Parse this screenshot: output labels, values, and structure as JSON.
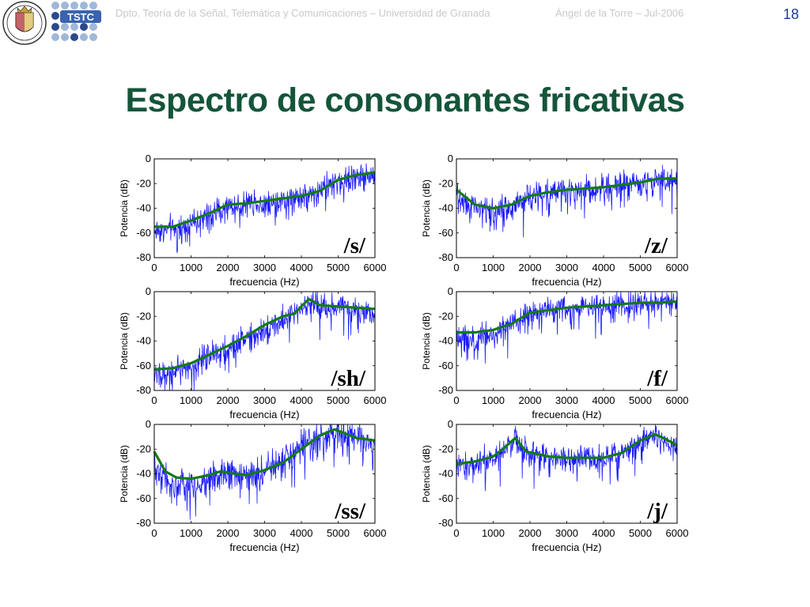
{
  "header": {
    "department": "Dpto. Teoría de la Señal, Telemática y Comunicaciones – Universidad de Granada",
    "author": "Ángel de la Torre – Jul-2006",
    "page_number": "18",
    "logo_ugr": "university-of-granada-crest",
    "logo_tstc": "TSTC"
  },
  "slide": {
    "title": "Espectro de consonantes fricativas"
  },
  "colors": {
    "noise_line": "#1a1aff",
    "envelope_line": "#147a14",
    "title": "#14553a",
    "page_number": "#1f3a93",
    "header_text": "#c9c9c9"
  },
  "chart_data": [
    {
      "type": "line",
      "label": "/s/",
      "xlabel": "frecuencia (Hz)",
      "ylabel": "Potencia (dB)",
      "xlim": [
        0,
        6000
      ],
      "ylim": [
        -80,
        0
      ],
      "xticks": [
        0,
        1000,
        2000,
        3000,
        4000,
        5000,
        6000
      ],
      "yticks": [
        0,
        -20,
        -40,
        -60,
        -80
      ],
      "grid": false,
      "series": [
        {
          "role": "spectrum",
          "color": "#1a1aff",
          "noise_db": 9,
          "x": [
            0,
            500,
            1000,
            1500,
            2000,
            2500,
            3000,
            3500,
            4000,
            4500,
            5000,
            5500,
            6000
          ],
          "y": [
            -58,
            -57,
            -52,
            -46,
            -39,
            -36,
            -35,
            -33,
            -30,
            -25,
            -18,
            -14,
            -13
          ]
        },
        {
          "role": "envelope",
          "color": "#147a14",
          "x": [
            0,
            500,
            1000,
            1500,
            2000,
            2500,
            3000,
            3500,
            4000,
            4500,
            5000,
            5500,
            6000
          ],
          "y": [
            -55,
            -55,
            -50,
            -44,
            -37,
            -36,
            -34,
            -32,
            -30,
            -26,
            -17,
            -13,
            -11
          ]
        }
      ]
    },
    {
      "type": "line",
      "label": "/z/",
      "xlabel": "frecuencia (Hz)",
      "ylabel": "Potencia (dB)",
      "xlim": [
        0,
        6000
      ],
      "ylim": [
        -80,
        0
      ],
      "xticks": [
        0,
        1000,
        2000,
        3000,
        4000,
        5000,
        6000
      ],
      "yticks": [
        0,
        -20,
        -40,
        -60,
        -80
      ],
      "grid": false,
      "series": [
        {
          "role": "spectrum",
          "color": "#1a1aff",
          "noise_db": 9,
          "x": [
            0,
            500,
            1000,
            1500,
            2000,
            2500,
            3000,
            3500,
            4000,
            4500,
            5000,
            5500,
            6000
          ],
          "y": [
            -30,
            -40,
            -42,
            -38,
            -30,
            -27,
            -25,
            -24,
            -23,
            -20,
            -18,
            -17,
            -17
          ]
        },
        {
          "role": "envelope",
          "color": "#147a14",
          "x": [
            0,
            500,
            1000,
            1500,
            2000,
            2500,
            3000,
            3500,
            4000,
            4500,
            5000,
            5500,
            6000
          ],
          "y": [
            -25,
            -37,
            -40,
            -37,
            -30,
            -27,
            -25,
            -24,
            -23,
            -21,
            -19,
            -16,
            -16
          ]
        }
      ]
    },
    {
      "type": "line",
      "label": "/sh/",
      "xlabel": "frecuencia (Hz)",
      "ylabel": "Potencia (dB)",
      "xlim": [
        0,
        6000
      ],
      "ylim": [
        -80,
        0
      ],
      "xticks": [
        0,
        1000,
        2000,
        3000,
        4000,
        5000,
        6000
      ],
      "yticks": [
        0,
        -20,
        -40,
        -60,
        -80
      ],
      "grid": false,
      "series": [
        {
          "role": "spectrum",
          "color": "#1a1aff",
          "noise_db": 9,
          "x": [
            0,
            500,
            1000,
            1500,
            2000,
            2500,
            3000,
            3500,
            3800,
            4200,
            4500,
            5000,
            5500,
            6000
          ],
          "y": [
            -66,
            -65,
            -60,
            -52,
            -45,
            -37,
            -30,
            -22,
            -18,
            -8,
            -12,
            -12,
            -14,
            -16
          ]
        },
        {
          "role": "envelope",
          "color": "#147a14",
          "x": [
            0,
            500,
            1000,
            1500,
            2000,
            2500,
            3000,
            3500,
            3800,
            4200,
            4500,
            5000,
            5500,
            6000
          ],
          "y": [
            -63,
            -62,
            -58,
            -51,
            -44,
            -36,
            -27,
            -20,
            -18,
            -6,
            -11,
            -12,
            -13,
            -14
          ]
        }
      ]
    },
    {
      "type": "line",
      "label": "/f/",
      "xlabel": "frecuencia (Hz)",
      "ylabel": "Potencia (dB)",
      "xlim": [
        0,
        6000
      ],
      "ylim": [
        -80,
        0
      ],
      "xticks": [
        0,
        1000,
        2000,
        3000,
        4000,
        5000,
        6000
      ],
      "yticks": [
        0,
        -20,
        -40,
        -60,
        -80
      ],
      "grid": false,
      "series": [
        {
          "role": "spectrum",
          "color": "#1a1aff",
          "noise_db": 9,
          "x": [
            0,
            500,
            1000,
            1500,
            2000,
            2500,
            3000,
            3500,
            4000,
            4500,
            5000,
            5500,
            6000
          ],
          "y": [
            -36,
            -37,
            -34,
            -25,
            -16,
            -15,
            -13,
            -12,
            -11,
            -10,
            -10,
            -9,
            -9
          ]
        },
        {
          "role": "envelope",
          "color": "#147a14",
          "x": [
            0,
            500,
            1000,
            1500,
            2000,
            2500,
            3000,
            3500,
            4000,
            4500,
            5000,
            5500,
            6000
          ],
          "y": [
            -33,
            -33,
            -31,
            -26,
            -17,
            -15,
            -13,
            -12,
            -11,
            -10,
            -9,
            -9,
            -8
          ]
        }
      ]
    },
    {
      "type": "line",
      "label": "/ss/",
      "xlabel": "frecuencia (Hz)",
      "ylabel": "Potencia (dB)",
      "xlim": [
        0,
        6000
      ],
      "ylim": [
        -80,
        0
      ],
      "xticks": [
        0,
        1000,
        2000,
        3000,
        4000,
        5000,
        6000
      ],
      "yticks": [
        0,
        -20,
        -40,
        -60,
        -80
      ],
      "grid": false,
      "series": [
        {
          "role": "spectrum",
          "color": "#1a1aff",
          "noise_db": 11,
          "x": [
            0,
            500,
            1000,
            1500,
            1800,
            2200,
            2500,
            3000,
            3500,
            4000,
            4500,
            4900,
            5500,
            6000
          ],
          "y": [
            -32,
            -50,
            -50,
            -44,
            -40,
            -42,
            -42,
            -38,
            -30,
            -20,
            -10,
            -4,
            -10,
            -14
          ]
        },
        {
          "role": "envelope",
          "color": "#147a14",
          "x": [
            0,
            300,
            600,
            1000,
            1500,
            1800,
            2200,
            2500,
            3000,
            3500,
            4000,
            4500,
            4900,
            5500,
            6000
          ],
          "y": [
            -22,
            -38,
            -43,
            -44,
            -41,
            -38,
            -40,
            -41,
            -37,
            -31,
            -20,
            -9,
            -4,
            -11,
            -13
          ]
        }
      ]
    },
    {
      "type": "line",
      "label": "/j/",
      "xlabel": "frecuencia (Hz)",
      "ylabel": "Potencia (dB)",
      "xlim": [
        0,
        6000
      ],
      "ylim": [
        -80,
        0
      ],
      "xticks": [
        0,
        1000,
        2000,
        3000,
        4000,
        5000,
        6000
      ],
      "yticks": [
        0,
        -20,
        -40,
        -60,
        -80
      ],
      "grid": false,
      "series": [
        {
          "role": "spectrum",
          "color": "#1a1aff",
          "noise_db": 9,
          "x": [
            0,
            500,
            1000,
            1300,
            1600,
            1900,
            2500,
            3000,
            3500,
            4000,
            4500,
            5000,
            5400,
            5700,
            6000
          ],
          "y": [
            -34,
            -32,
            -27,
            -20,
            -12,
            -22,
            -27,
            -28,
            -28,
            -28,
            -24,
            -14,
            -9,
            -13,
            -18
          ]
        },
        {
          "role": "envelope",
          "color": "#147a14",
          "x": [
            0,
            500,
            1000,
            1300,
            1600,
            1900,
            2500,
            3000,
            3500,
            4000,
            4500,
            5000,
            5400,
            5700,
            6000
          ],
          "y": [
            -32,
            -30,
            -26,
            -19,
            -11,
            -22,
            -26,
            -27,
            -27,
            -27,
            -23,
            -13,
            -8,
            -12,
            -17
          ]
        }
      ]
    }
  ]
}
